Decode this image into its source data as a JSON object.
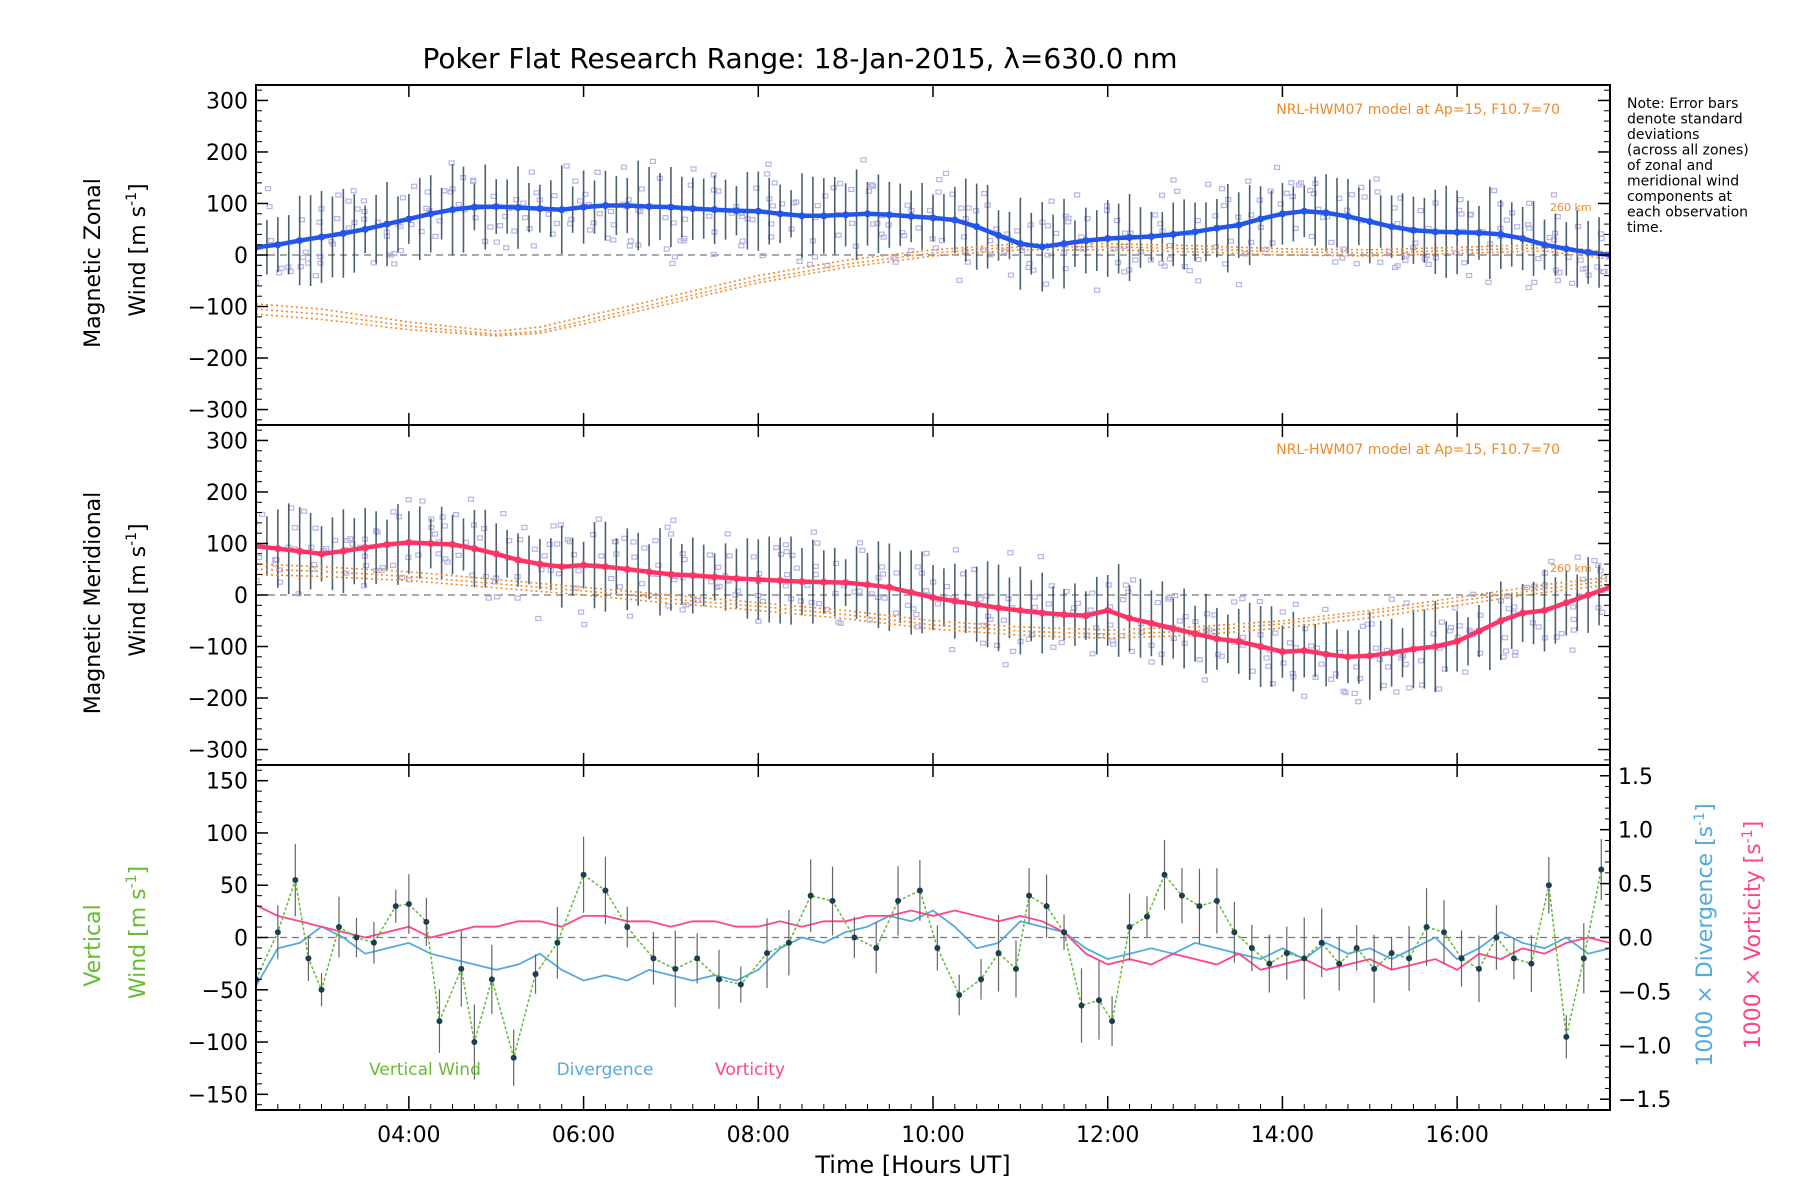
{
  "title": "Poker Flat Research Range: 18-Jan-2015, λ=630.0 nm",
  "note": [
    "Note: Error bars",
    "denote standard",
    "deviations",
    "(across all zones)",
    "of zonal and",
    "meridional wind",
    "components at",
    "each observation",
    "time."
  ],
  "colors": {
    "zonal": "#2255ee",
    "meridional": "#ff3366",
    "model": "#f08a2a",
    "scatter": "#b7b3e8",
    "vertical": "#66bb33",
    "divergence": "#55aadd",
    "vorticity": "#ff4488",
    "errorbar": "#1f3a4a"
  },
  "chart_data": [
    {
      "type": "line",
      "panel": "zonal",
      "ylabel": "Magnetic Zonal Wind [m s^-1]",
      "ylabel_line1": "Magnetic Zonal",
      "ylabel_line2": "Wind [m s",
      "ylabel_unit_close": "]",
      "ylim": [
        -330,
        330
      ],
      "yticks": [
        "300",
        "200",
        "100",
        "0",
        "−100",
        "−200",
        "−300"
      ],
      "yticks_values": [
        300,
        200,
        100,
        0,
        -100,
        -200,
        -300
      ],
      "model_label": "NRL-HWM07 model at Ap=15, F10.7=70",
      "model_alt_label": "260 km",
      "series": [
        {
          "name": "Magnetic Zonal Wind",
          "x": [
            2.25,
            2.5,
            2.75,
            3.0,
            3.25,
            3.5,
            3.75,
            4.0,
            4.25,
            4.5,
            4.75,
            5.0,
            5.25,
            5.5,
            5.75,
            6.0,
            6.25,
            6.5,
            6.75,
            7.0,
            7.25,
            7.5,
            7.75,
            8.0,
            8.25,
            8.5,
            8.75,
            9.0,
            9.25,
            9.5,
            9.75,
            10.0,
            10.25,
            10.5,
            10.75,
            11.0,
            11.25,
            11.5,
            11.75,
            12.0,
            12.25,
            12.5,
            12.75,
            13.0,
            13.25,
            13.5,
            13.75,
            14.0,
            14.25,
            14.5,
            14.75,
            15.0,
            15.25,
            15.5,
            15.75,
            16.0,
            16.25,
            16.5,
            16.75,
            17.0,
            17.25,
            17.5,
            17.75
          ],
          "values": [
            15,
            20,
            28,
            35,
            42,
            50,
            60,
            70,
            80,
            88,
            93,
            94,
            92,
            90,
            88,
            93,
            96,
            96,
            94,
            93,
            90,
            88,
            86,
            85,
            80,
            76,
            76,
            78,
            80,
            78,
            75,
            72,
            68,
            55,
            38,
            22,
            16,
            22,
            28,
            32,
            34,
            36,
            40,
            45,
            52,
            58,
            70,
            80,
            85,
            82,
            75,
            65,
            55,
            48,
            45,
            44,
            43,
            40,
            32,
            20,
            12,
            5,
            0
          ]
        }
      ],
      "model_curves": [
        {
          "x": [
            2.25,
            3,
            4,
            5,
            5.5,
            6,
            7,
            8,
            9,
            10,
            11,
            12,
            13,
            14,
            15,
            16,
            17,
            17.75
          ],
          "values": [
            -95,
            -105,
            -130,
            -148,
            -140,
            -120,
            -80,
            -40,
            -10,
            10,
            22,
            22,
            18,
            12,
            10,
            15,
            20,
            5
          ]
        },
        {
          "x": [
            2.25,
            3,
            4,
            5,
            5.5,
            6,
            7,
            8,
            9,
            10,
            11,
            12,
            13,
            14,
            15,
            16,
            17,
            17.75
          ],
          "values": [
            -105,
            -115,
            -138,
            -154,
            -148,
            -128,
            -88,
            -48,
            -18,
            4,
            16,
            16,
            12,
            6,
            4,
            9,
            14,
            -2
          ]
        },
        {
          "x": [
            2.25,
            3,
            4,
            5,
            5.5,
            6,
            7,
            8,
            9,
            10,
            11,
            12,
            13,
            14,
            15,
            16,
            17,
            17.75
          ],
          "values": [
            -115,
            -125,
            -145,
            -157,
            -152,
            -134,
            -94,
            -54,
            -24,
            -2,
            10,
            10,
            6,
            0,
            -2,
            3,
            8,
            -8
          ]
        }
      ]
    },
    {
      "type": "line",
      "panel": "meridional",
      "ylabel": "Magnetic Meridional Wind [m s^-1]",
      "ylabel_line1": "Magnetic Meridional",
      "ylabel_line2": "Wind [m s",
      "ylabel_unit_close": "]",
      "ylim": [
        -330,
        330
      ],
      "yticks": [
        "300",
        "200",
        "100",
        "0",
        "−100",
        "−200",
        "−300"
      ],
      "yticks_values": [
        300,
        200,
        100,
        0,
        -100,
        -200,
        -300
      ],
      "model_label": "NRL-HWM07 model at Ap=15, F10.7=70",
      "model_alt_label": "260 km",
      "series": [
        {
          "name": "Magnetic Meridional Wind",
          "x": [
            2.25,
            2.5,
            2.75,
            3.0,
            3.25,
            3.5,
            3.75,
            4.0,
            4.25,
            4.5,
            4.75,
            5.0,
            5.25,
            5.5,
            5.75,
            6.0,
            6.25,
            6.5,
            6.75,
            7.0,
            7.25,
            7.5,
            7.75,
            8.0,
            8.25,
            8.5,
            8.75,
            9.0,
            9.25,
            9.5,
            9.75,
            10.0,
            10.25,
            10.5,
            10.75,
            11.0,
            11.25,
            11.5,
            11.75,
            12.0,
            12.25,
            12.5,
            12.75,
            13.0,
            13.25,
            13.5,
            13.75,
            14.0,
            14.25,
            14.5,
            14.75,
            15.0,
            15.25,
            15.5,
            15.75,
            16.0,
            16.25,
            16.5,
            16.75,
            17.0,
            17.25,
            17.5,
            17.75
          ],
          "values": [
            95,
            90,
            85,
            80,
            85,
            92,
            98,
            102,
            100,
            98,
            90,
            80,
            68,
            60,
            55,
            58,
            55,
            50,
            45,
            40,
            38,
            35,
            32,
            30,
            28,
            26,
            25,
            24,
            20,
            15,
            5,
            -5,
            -12,
            -18,
            -25,
            -30,
            -35,
            -38,
            -40,
            -30,
            -45,
            -55,
            -65,
            -75,
            -85,
            -90,
            -100,
            -110,
            -108,
            -115,
            -120,
            -118,
            -112,
            -105,
            -100,
            -90,
            -70,
            -50,
            -35,
            -30,
            -15,
            0,
            15
          ]
        }
      ],
      "model_curves": [
        {
          "x": [
            2.25,
            3,
            4,
            5,
            6,
            7,
            8,
            9,
            10,
            11,
            12,
            13,
            14,
            15,
            16,
            17,
            17.75
          ],
          "values": [
            60,
            55,
            45,
            30,
            15,
            0,
            -15,
            -30,
            -50,
            -62,
            -68,
            -62,
            -50,
            -30,
            -5,
            20,
            35
          ]
        },
        {
          "x": [
            2.25,
            3,
            4,
            5,
            6,
            7,
            8,
            9,
            10,
            11,
            12,
            13,
            14,
            15,
            16,
            17,
            17.75
          ],
          "values": [
            50,
            46,
            36,
            22,
            8,
            -8,
            -22,
            -38,
            -58,
            -70,
            -76,
            -70,
            -56,
            -36,
            -12,
            12,
            28
          ]
        },
        {
          "x": [
            2.25,
            3,
            4,
            5,
            6,
            7,
            8,
            9,
            10,
            11,
            12,
            13,
            14,
            15,
            16,
            17,
            17.75
          ],
          "values": [
            40,
            36,
            28,
            14,
            0,
            -16,
            -30,
            -46,
            -66,
            -78,
            -84,
            -78,
            -64,
            -44,
            -20,
            5,
            20
          ]
        }
      ]
    },
    {
      "type": "line",
      "panel": "vertical",
      "ylabel": "Vertical Wind [m s^-1]",
      "ylabel_line1": "Vertical",
      "ylabel_line2": "Wind [m s",
      "ylabel_unit_close": "]",
      "ylim": [
        -165,
        165
      ],
      "yticks": [
        "150",
        "100",
        "50",
        "0",
        "−50",
        "−100",
        "−150"
      ],
      "yticks_values": [
        150,
        100,
        50,
        0,
        -50,
        -100,
        -150
      ],
      "y2label_div": "1000 × Divergence [s",
      "y2label_vort": "1000 × Vorticity [s",
      "y2label_close": "]",
      "y2lim": [
        -1.6,
        1.6
      ],
      "y2ticks": [
        "1.5",
        "1.0",
        "0.5",
        "0.0",
        "−0.5",
        "−1.0",
        "−1.5"
      ],
      "y2ticks_values": [
        1.5,
        1.0,
        0.5,
        0.0,
        -0.5,
        -1.0,
        -1.5
      ],
      "xlabel": "Time [Hours UT]",
      "xlim": [
        2.25,
        17.75
      ],
      "xticks": [
        "04:00",
        "06:00",
        "08:00",
        "10:00",
        "12:00",
        "14:00",
        "16:00"
      ],
      "xticks_values": [
        4,
        6,
        8,
        10,
        12,
        14,
        16
      ],
      "legend": [
        "Vertical Wind",
        "Divergence",
        "Vorticity"
      ],
      "series": [
        {
          "name": "Vertical Wind",
          "x": [
            2.25,
            2.5,
            2.7,
            2.85,
            3.0,
            3.2,
            3.4,
            3.6,
            3.85,
            4.0,
            4.2,
            4.35,
            4.6,
            4.75,
            4.95,
            5.2,
            5.45,
            5.7,
            6.0,
            6.25,
            6.5,
            6.8,
            7.05,
            7.3,
            7.55,
            7.8,
            8.1,
            8.35,
            8.6,
            8.85,
            9.1,
            9.35,
            9.6,
            9.85,
            10.05,
            10.3,
            10.55,
            10.75,
            10.95,
            11.1,
            11.3,
            11.5,
            11.7,
            11.9,
            12.05,
            12.25,
            12.45,
            12.65,
            12.85,
            13.05,
            13.25,
            13.45,
            13.65,
            13.85,
            14.05,
            14.25,
            14.45,
            14.65,
            14.85,
            15.05,
            15.25,
            15.45,
            15.65,
            15.85,
            16.05,
            16.25,
            16.45,
            16.65,
            16.85,
            17.05,
            17.25,
            17.45,
            17.65
          ],
          "values": [
            -40,
            5,
            55,
            -20,
            -50,
            10,
            0,
            -5,
            30,
            32,
            15,
            -80,
            -30,
            -100,
            -40,
            -115,
            -35,
            -5,
            60,
            45,
            10,
            -20,
            -30,
            -20,
            -40,
            -45,
            -15,
            -5,
            40,
            35,
            0,
            -10,
            35,
            45,
            -10,
            -55,
            -40,
            -15,
            -30,
            40,
            30,
            5,
            -65,
            -60,
            -80,
            10,
            20,
            60,
            40,
            30,
            35,
            5,
            -10,
            -25,
            -15,
            -20,
            -5,
            -25,
            -10,
            -30,
            -15,
            -20,
            10,
            5,
            -20,
            -30,
            0,
            -20,
            -25,
            50,
            -95,
            -20,
            65
          ]
        },
        {
          "name": "Divergence",
          "x": [
            2.25,
            2.5,
            2.75,
            3.0,
            3.25,
            3.5,
            3.75,
            4.0,
            4.25,
            4.5,
            4.75,
            5.0,
            5.25,
            5.5,
            5.75,
            6.0,
            6.25,
            6.5,
            6.75,
            7.0,
            7.25,
            7.5,
            7.75,
            8.0,
            8.25,
            8.5,
            8.75,
            9.0,
            9.25,
            9.5,
            9.75,
            10.0,
            10.25,
            10.5,
            10.75,
            11.0,
            11.25,
            11.5,
            11.75,
            12.0,
            12.25,
            12.5,
            12.75,
            13.0,
            13.25,
            13.5,
            13.75,
            14.0,
            14.25,
            14.5,
            14.75,
            15.0,
            15.25,
            15.5,
            15.75,
            16.0,
            16.25,
            16.5,
            16.75,
            17.0,
            17.25,
            17.5,
            17.75
          ],
          "values": [
            -0.45,
            -0.1,
            -0.05,
            0.1,
            0.0,
            -0.15,
            -0.1,
            -0.05,
            -0.15,
            -0.2,
            -0.25,
            -0.3,
            -0.25,
            -0.15,
            -0.3,
            -0.4,
            -0.35,
            -0.4,
            -0.3,
            -0.35,
            -0.4,
            -0.35,
            -0.4,
            -0.3,
            -0.1,
            0.0,
            -0.05,
            0.05,
            0.1,
            0.2,
            0.15,
            0.25,
            0.1,
            -0.1,
            -0.05,
            0.15,
            0.1,
            0.05,
            -0.1,
            -0.2,
            -0.15,
            -0.1,
            -0.15,
            -0.05,
            -0.1,
            -0.15,
            -0.2,
            -0.1,
            -0.2,
            -0.05,
            -0.15,
            -0.1,
            -0.2,
            -0.1,
            0.0,
            -0.2,
            -0.1,
            0.05,
            -0.05,
            -0.1,
            0.0,
            -0.15,
            -0.1
          ]
        },
        {
          "name": "Vorticity",
          "x": [
            2.25,
            2.5,
            2.75,
            3.0,
            3.25,
            3.5,
            3.75,
            4.0,
            4.25,
            4.5,
            4.75,
            5.0,
            5.25,
            5.5,
            5.75,
            6.0,
            6.25,
            6.5,
            6.75,
            7.0,
            7.25,
            7.5,
            7.75,
            8.0,
            8.25,
            8.5,
            8.75,
            9.0,
            9.25,
            9.5,
            9.75,
            10.0,
            10.25,
            10.5,
            10.75,
            11.0,
            11.25,
            11.5,
            11.75,
            12.0,
            12.25,
            12.5,
            12.75,
            13.0,
            13.25,
            13.5,
            13.75,
            14.0,
            14.25,
            14.5,
            14.75,
            15.0,
            15.25,
            15.5,
            15.75,
            16.0,
            16.25,
            16.5,
            16.75,
            17.0,
            17.25,
            17.5,
            17.75
          ],
          "values": [
            0.3,
            0.2,
            0.15,
            0.1,
            0.05,
            0.0,
            0.05,
            0.1,
            0.0,
            0.05,
            0.1,
            0.1,
            0.15,
            0.15,
            0.1,
            0.2,
            0.2,
            0.15,
            0.15,
            0.1,
            0.15,
            0.15,
            0.1,
            0.1,
            0.15,
            0.1,
            0.15,
            0.15,
            0.2,
            0.2,
            0.25,
            0.2,
            0.25,
            0.2,
            0.15,
            0.2,
            0.15,
            0.05,
            -0.15,
            -0.25,
            -0.2,
            -0.25,
            -0.15,
            -0.2,
            -0.25,
            -0.15,
            -0.3,
            -0.25,
            -0.2,
            -0.3,
            -0.25,
            -0.2,
            -0.3,
            -0.25,
            -0.2,
            -0.3,
            -0.15,
            -0.2,
            -0.1,
            -0.15,
            -0.05,
            0.0,
            -0.05
          ]
        }
      ]
    }
  ]
}
